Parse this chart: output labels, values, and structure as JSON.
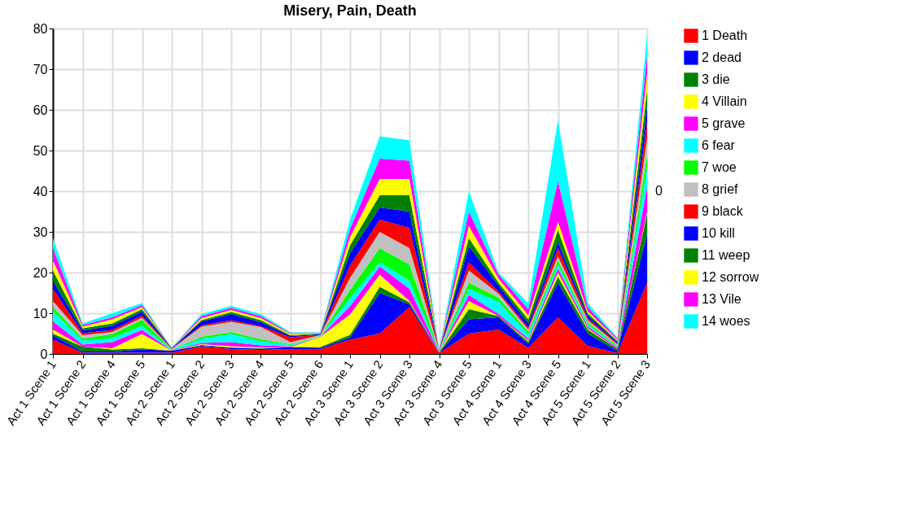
{
  "chart_data": {
    "type": "area",
    "stacked": true,
    "title": "Misery, Pain, Death",
    "categories": [
      "Act 1 Scene 1",
      "Act 1 Scene 2",
      "Act 1 Scene 4",
      "Act 1 Scene 5",
      "Act 2 Scene 1",
      "Act 2 Scene 2",
      "Act 2 Scene 3",
      "Act 2 Scene 4",
      "Act 2 Scene 5",
      "Act 2 Scene 6",
      "Act 3 Scene 1",
      "Act 3 Scene 2",
      "Act 3 Scene 3",
      "Act 3 Scene 4",
      "Act 3 Scene 5",
      "Act 4 Scene 1",
      "Act 4 Scene 3",
      "Act 4 Scene 5",
      "Act 5 Scene 1",
      "Act 5 Scene 2",
      "Act 5 Scene 3"
    ],
    "series": [
      {
        "name": "1  Death",
        "color": "#ff0000",
        "values": [
          3.5,
          0.3,
          0.3,
          0.3,
          0.3,
          1.8,
          1.2,
          1,
          1.2,
          1.2,
          3.5,
          5,
          11.5,
          0.2,
          5,
          6,
          1.5,
          9,
          2,
          0.2,
          17.5
        ]
      },
      {
        "name": "2  dead",
        "color": "#0000ff",
        "values": [
          1,
          0.3,
          0.3,
          0.8,
          0.5,
          0.2,
          0.3,
          0.3,
          0.5,
          0.3,
          0.5,
          10,
          0.7,
          0.1,
          3.5,
          3,
          1,
          8.5,
          3,
          0.5,
          12
        ]
      },
      {
        "name": "3  die",
        "color": "#008000",
        "values": [
          0.5,
          1.2,
          0.5,
          0.3,
          0,
          0.2,
          0.1,
          0.1,
          0,
          0.2,
          0.7,
          1.5,
          0.5,
          0.1,
          2.5,
          0.3,
          0.5,
          1.5,
          1,
          0.5,
          5
        ]
      },
      {
        "name": "4  Villain",
        "color": "#ffff00",
        "values": [
          1,
          0,
          0.3,
          3.5,
          0,
          0.2,
          0.3,
          0.2,
          0,
          2.5,
          5,
          3,
          0.3,
          0,
          2,
          0,
          0.3,
          1,
          0.3,
          0,
          0.5
        ]
      },
      {
        "name": "5  grave",
        "color": "#ff00ff",
        "values": [
          2,
          0.5,
          1.5,
          1,
          0.1,
          0.3,
          1,
          0.5,
          0.2,
          0.1,
          2,
          2,
          3,
          0.1,
          1.5,
          0.5,
          0.5,
          1,
          0.5,
          0.3,
          6
        ]
      },
      {
        "name": "6  fear",
        "color": "#00ffff",
        "values": [
          2.5,
          1,
          1,
          1,
          0.1,
          1,
          2,
          1,
          0.3,
          0.1,
          2,
          1,
          2,
          0.1,
          1.5,
          3,
          1,
          1,
          0.5,
          0.2,
          5
        ]
      },
      {
        "name": "7  woe",
        "color": "#00ff00",
        "values": [
          1,
          0.5,
          1,
          1.5,
          0.1,
          0.5,
          0.5,
          0.5,
          0.2,
          0.1,
          2,
          3.5,
          4,
          0.1,
          1.5,
          1,
          0.7,
          1,
          0.5,
          0.3,
          3
        ]
      },
      {
        "name": "8  grief",
        "color": "#c0c0c0",
        "values": [
          1.5,
          0.8,
          0.5,
          0.5,
          0.1,
          2.5,
          2.5,
          3,
          0.5,
          0.1,
          3,
          4,
          4,
          0.1,
          3,
          1,
          0.5,
          1,
          0.5,
          0.3,
          4
        ]
      },
      {
        "name": "9  black",
        "color": "#ff0000",
        "values": [
          3,
          0.5,
          0.5,
          0.5,
          0.1,
          0.3,
          0.4,
          0.2,
          1.2,
          0.1,
          3,
          3,
          5,
          0.1,
          2,
          0.5,
          0.5,
          2,
          0.5,
          0.3,
          4
        ]
      },
      {
        "name": "10  kill",
        "color": "#0000ff",
        "values": [
          2,
          0.7,
          1,
          1,
          0.1,
          1,
          1.5,
          1,
          0.3,
          0.2,
          3,
          3,
          4,
          0.1,
          4,
          1.5,
          1,
          1.5,
          0.7,
          0.3,
          4
        ]
      },
      {
        "name": "11  weep",
        "color": "#008000",
        "values": [
          2.5,
          0.5,
          0.6,
          0.6,
          0.1,
          0.3,
          0.5,
          0.5,
          0.2,
          0.1,
          2,
          3,
          4,
          0,
          2,
          0.7,
          1,
          3,
          0.5,
          0.3,
          4
        ]
      },
      {
        "name": "12  sorrow",
        "color": "#ffff00",
        "values": [
          2.5,
          0.4,
          1,
          0.5,
          0,
          0.5,
          0.5,
          0.5,
          0.3,
          0.1,
          2,
          4,
          4,
          0,
          3,
          1,
          1,
          2,
          0.5,
          0.3,
          4
        ]
      },
      {
        "name": "13  Vile",
        "color": "#ff00ff",
        "values": [
          3,
          0.4,
          0.5,
          0.5,
          0,
          0.5,
          0.5,
          0.5,
          0.2,
          0.1,
          2,
          5,
          4.5,
          0,
          3.5,
          1,
          1.5,
          10,
          1,
          0.3,
          4.5
        ]
      },
      {
        "name": "14  woes",
        "color": "#00ffff",
        "values": [
          2.5,
          0.4,
          1,
          0.5,
          0,
          0.5,
          0.5,
          0.5,
          0.2,
          0.1,
          2.3,
          5.5,
          5,
          0,
          5,
          0.5,
          1.5,
          15,
          1,
          0.2,
          5
        ]
      }
    ],
    "ylim": [
      0,
      80
    ],
    "yticks": [
      0,
      10,
      20,
      30,
      40,
      50,
      60,
      70,
      80
    ],
    "annotations": [
      "0"
    ],
    "grid": true,
    "legend": "right"
  }
}
